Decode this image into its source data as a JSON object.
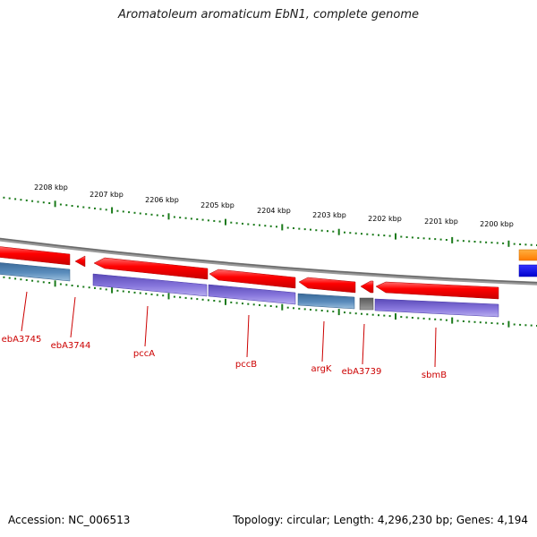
{
  "title": "Aromatoleum aromaticum EbN1, complete genome",
  "footer": {
    "accession": "Accession: NC_006513",
    "stats": "Topology: circular; Length: 4,296,230 bp; Genes: 4,194"
  },
  "colors": {
    "backbone": "#8a8a8a",
    "forward_gene": "#ee0000",
    "cds_purple": "#7766cc",
    "cds_steelblue": "#4a7fae",
    "cds_gray": "#777777",
    "orange": "#ff8a00",
    "blue": "#0000ee",
    "tick": "#1a7a1a",
    "label": "#cc0000"
  },
  "scale_labels": [
    "2208 kbp",
    "2207 kbp",
    "2206 kbp",
    "2205 kbp",
    "2204 kbp",
    "2203 kbp",
    "2202 kbp",
    "2201 kbp",
    "2200 kbp"
  ],
  "gene_labels": [
    "ebA3745",
    "ebA3744",
    "pccA",
    "pccB",
    "argK",
    "ebA3739",
    "sbmB"
  ]
}
